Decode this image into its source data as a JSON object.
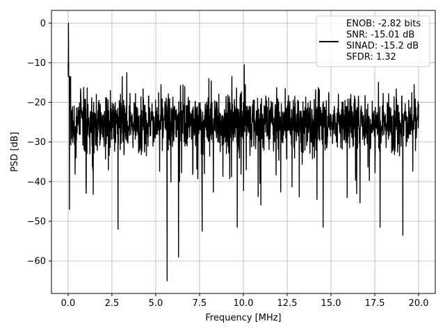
{
  "chart_data": {
    "type": "line",
    "title": "",
    "xlabel": "Frequency [MHz]",
    "ylabel": "PSD [dB]",
    "xlim": [
      -0.95,
      20.95
    ],
    "ylim": [
      -68.2,
      3.2
    ],
    "grid": true,
    "x_ticks": [
      0.0,
      2.5,
      5.0,
      7.5,
      10.0,
      12.5,
      15.0,
      17.5,
      20.0
    ],
    "x_tick_labels": [
      "0.0",
      "2.5",
      "5.0",
      "7.5",
      "10.0",
      "12.5",
      "15.0",
      "17.5",
      "20.0"
    ],
    "y_ticks": [
      0,
      -10,
      -20,
      -30,
      -40,
      -50,
      -60
    ],
    "y_tick_labels": [
      "0",
      "−10",
      "−20",
      "−30",
      "−40",
      "−50",
      "−60"
    ],
    "legend": {
      "placement": "top-right",
      "entries": [
        "ENOB: -2.82 bits",
        "SNR: -15.01 dB",
        "SINAD: -15.2 dB",
        "SFDR: 1.32"
      ]
    },
    "series": [
      {
        "color": "#000000",
        "noise_floor_db": -25,
        "x_range": [
          0,
          20
        ],
        "peak_near_dc": {
          "x": 0.02,
          "y": 0
        },
        "notable_points": [
          {
            "x": 0.08,
            "y": -47
          },
          {
            "x": 2.85,
            "y": -52
          },
          {
            "x": 3.35,
            "y": -12.5
          },
          {
            "x": 5.65,
            "y": -65
          },
          {
            "x": 6.3,
            "y": -59
          },
          {
            "x": 7.65,
            "y": -52.5
          },
          {
            "x": 9.65,
            "y": -51.5
          },
          {
            "x": 10.05,
            "y": -10.5
          },
          {
            "x": 14.55,
            "y": -51.5
          },
          {
            "x": 17.8,
            "y": -51.5
          },
          {
            "x": 19.1,
            "y": -53.5
          }
        ]
      }
    ]
  }
}
